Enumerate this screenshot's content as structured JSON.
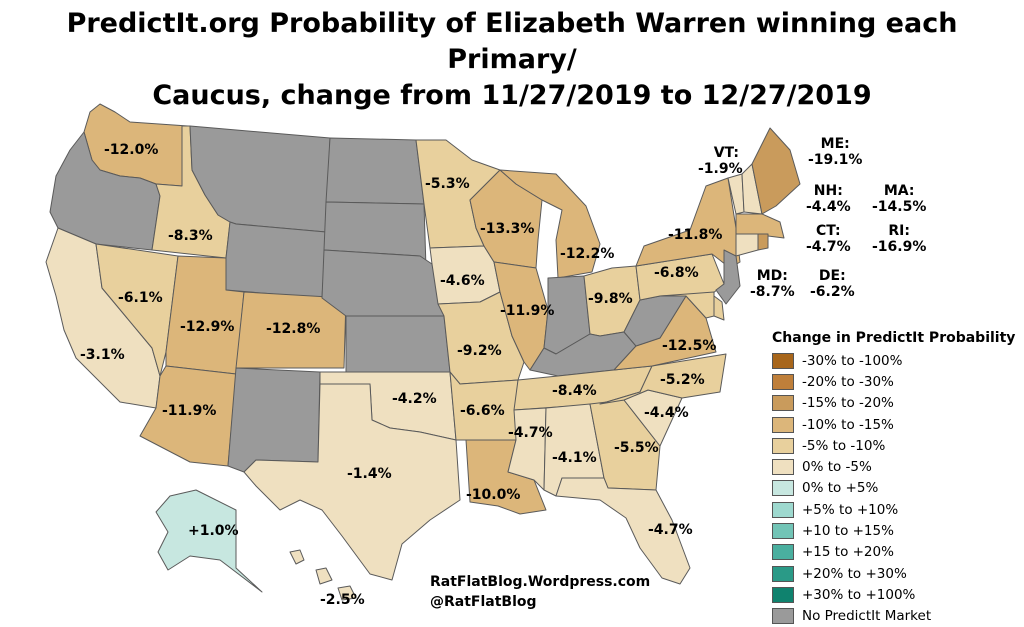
{
  "title_line1": "PredictIt.org Probability of Elizabeth Warren winning each Primary/",
  "title_line2": "Caucus, change from 11/27/2019 to 12/27/2019",
  "colors": {
    "neg_30_100": "#a8661b",
    "neg_20_30": "#bf7f3a",
    "neg_15_20": "#c99b5c",
    "neg_10_15": "#dcb67a",
    "neg_5_10": "#e8d09d",
    "zero_neg5": "#efe0c0",
    "zero_pos5": "#c7e7e0",
    "pos_5_10": "#9ed9cf",
    "pos_10_15": "#72c4b6",
    "pos_15_20": "#4aaf9f",
    "pos_20_30": "#2a9a87",
    "pos_30_100": "#0f826e",
    "none": "#9a9a9a"
  },
  "states": {
    "WA": "-12.0%",
    "OR": null,
    "ID": "-8.3%",
    "MT": null,
    "WY": null,
    "CA": "-3.1%",
    "NV": "-6.1%",
    "UT": "-12.9%",
    "CO": "-12.8%",
    "AZ": "-11.9%",
    "NM": null,
    "ND": null,
    "SD": null,
    "NE": null,
    "KS": null,
    "OK": "-4.2%",
    "TX": "-1.4%",
    "MN": "-5.3%",
    "IA": "-4.6%",
    "MO": "-9.2%",
    "AR": "-6.6%",
    "LA": "-10.0%",
    "WI": "-13.3%",
    "IL": "-11.9%",
    "MI": "-12.2%",
    "IN": null,
    "OH": "-9.8%",
    "KY": null,
    "TN": "-8.4%",
    "MS": "-4.7%",
    "AL": "-4.1%",
    "GA": "-5.5%",
    "FL": "-4.7%",
    "SC": "-4.4%",
    "NC": "-5.2%",
    "VA": "-12.5%",
    "WV": null,
    "PA": "-6.8%",
    "NY": "-11.8%",
    "AK": "+1.0%",
    "HI": "-2.5%"
  },
  "callouts": {
    "VT": {
      "abbr": "VT:",
      "value": "-1.9%"
    },
    "ME": {
      "abbr": "ME:",
      "value": "-19.1%"
    },
    "NH": {
      "abbr": "NH:",
      "value": "-4.4%"
    },
    "MA": {
      "abbr": "MA:",
      "value": "-14.5%"
    },
    "CT": {
      "abbr": "CT:",
      "value": "-4.7%"
    },
    "RI": {
      "abbr": "RI:",
      "value": "-16.9%"
    },
    "MD": {
      "abbr": "MD:",
      "value": "-8.7%"
    },
    "DE": {
      "abbr": "DE:",
      "value": "-6.2%"
    }
  },
  "legend": {
    "title": "Change in PredictIt Probability",
    "items": [
      {
        "label": "-30% to -100%",
        "color": "#a8661b"
      },
      {
        "label": "-20% to -30%",
        "color": "#bf7f3a"
      },
      {
        "label": "-15% to -20%",
        "color": "#c99b5c"
      },
      {
        "label": "-10% to -15%",
        "color": "#dcb67a"
      },
      {
        "label": "-5% to -10%",
        "color": "#e8d09d"
      },
      {
        "label": "0% to -5%",
        "color": "#efe0c0"
      },
      {
        "label": "0% to +5%",
        "color": "#c7e7e0"
      },
      {
        "label": "+5% to +10%",
        "color": "#9ed9cf"
      },
      {
        "label": "+10 to +15%",
        "color": "#72c4b6"
      },
      {
        "label": "+15 to +20%",
        "color": "#4aaf9f"
      },
      {
        "label": "+20% to +30%",
        "color": "#2a9a87"
      },
      {
        "label": "+30% to +100%",
        "color": "#0f826e"
      },
      {
        "label": "No PredictIt Market",
        "color": "#9a9a9a"
      }
    ]
  },
  "credit": {
    "blog": "RatFlatBlog.Wordpress.com",
    "twitter": "@RatFlatBlog"
  }
}
